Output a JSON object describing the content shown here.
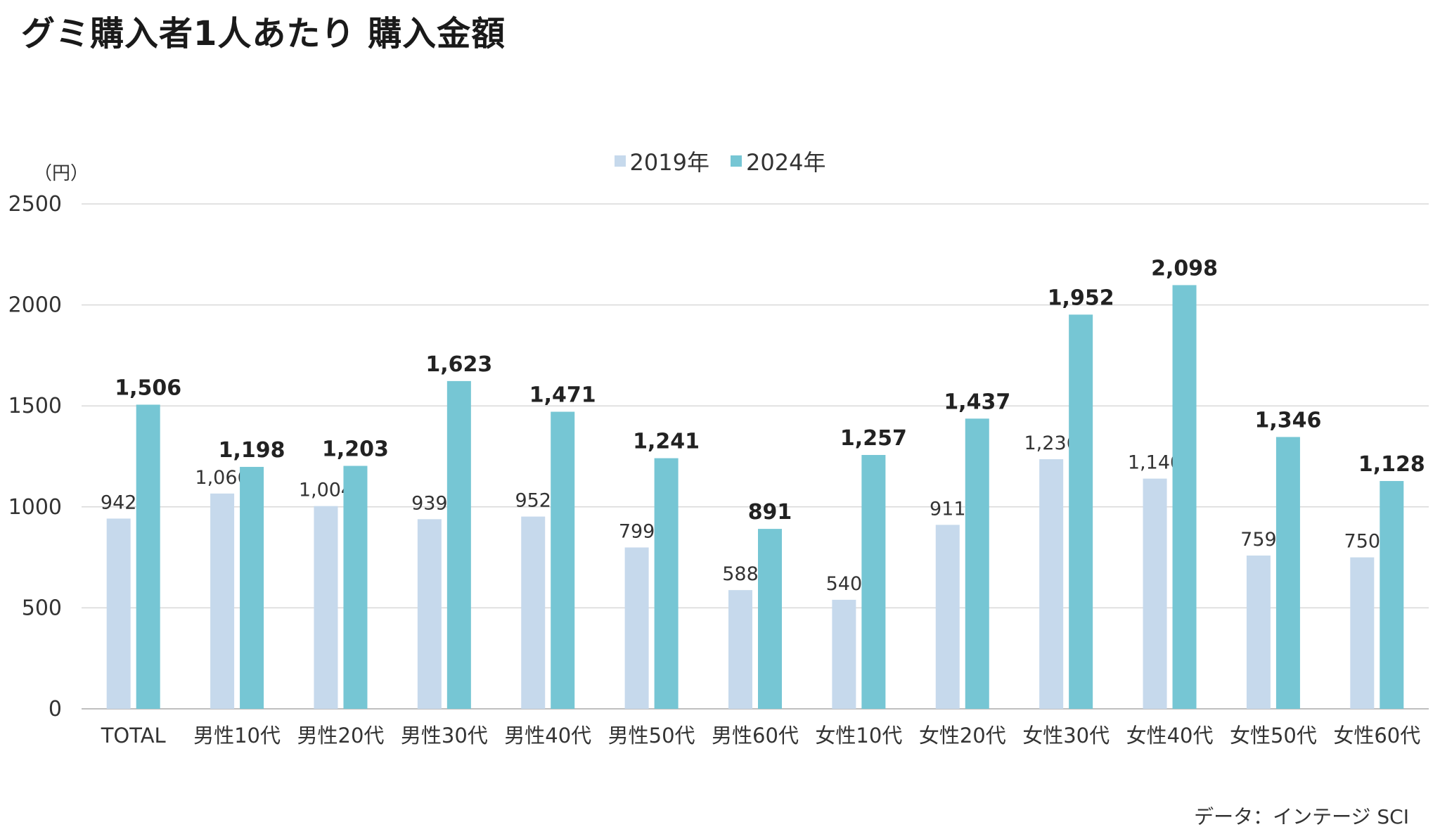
{
  "title": "グミ購入者1人あたり 購入金額",
  "unit_label": "（円）",
  "source": "データ：インテージ SCI",
  "colors": {
    "series_2019": "#c6d9ec",
    "series_2024": "#76c6d4",
    "grid": "#d9d9d9",
    "axis": "#bfbfbf"
  },
  "chart_data": {
    "type": "bar",
    "title": "グミ購入者1人あたり 購入金額",
    "ylabel": "（円）",
    "xlabel": "",
    "ylim": [
      0,
      2500
    ],
    "yticks": [
      0,
      500,
      1000,
      1500,
      2000,
      2500
    ],
    "grid": true,
    "legend_position": "top-center",
    "categories": [
      "TOTAL",
      "男性10代",
      "男性20代",
      "男性30代",
      "男性40代",
      "男性50代",
      "男性60代",
      "女性10代",
      "女性20代",
      "女性30代",
      "女性40代",
      "女性50代",
      "女性60代"
    ],
    "series": [
      {
        "name": "2019年",
        "values": [
          942,
          1066,
          1004,
          939,
          952,
          799,
          588,
          540,
          911,
          1236,
          1140,
          759,
          750
        ],
        "labels": [
          "942",
          "1,066",
          "1,004",
          "939",
          "952",
          "799",
          "588",
          "540",
          "911",
          "1,236",
          "1,140",
          "759",
          "750"
        ]
      },
      {
        "name": "2024年",
        "values": [
          1506,
          1198,
          1203,
          1623,
          1471,
          1241,
          891,
          1257,
          1437,
          1952,
          2098,
          1346,
          1128
        ],
        "labels": [
          "1,506",
          "1,198",
          "1,203",
          "1,623",
          "1,471",
          "1,241",
          "891",
          "1,257",
          "1,437",
          "1,952",
          "2,098",
          "1,346",
          "1,128"
        ]
      }
    ]
  }
}
